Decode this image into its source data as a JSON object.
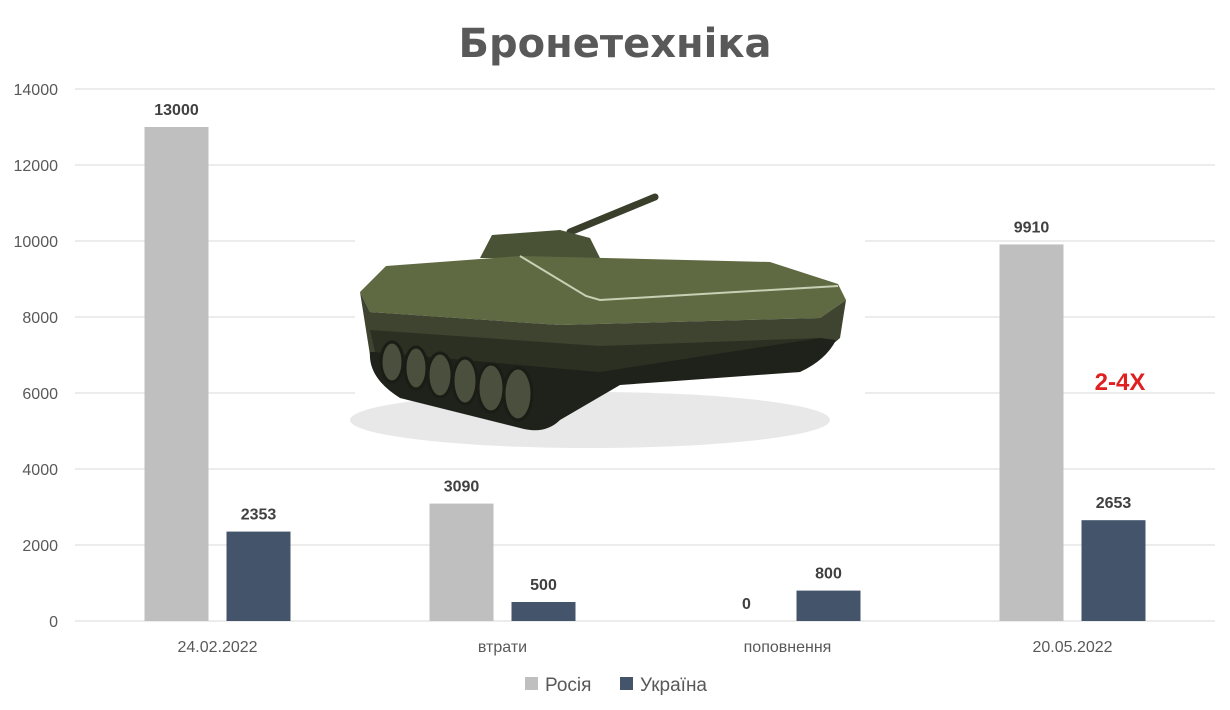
{
  "chart_data": {
    "type": "bar",
    "title": "Бронетехніка",
    "categories": [
      "24.02.2022",
      "втрати",
      "поповнення",
      "20.05.2022"
    ],
    "series": [
      {
        "name": "Росія",
        "color": "#bfbfbf",
        "values": [
          13000,
          3090,
          0,
          9910
        ]
      },
      {
        "name": "Україна",
        "color": "#44546a",
        "values": [
          2353,
          500,
          800,
          2653
        ]
      }
    ],
    "ylim": [
      0,
      14000
    ],
    "yticks": [
      0,
      2000,
      4000,
      6000,
      8000,
      10000,
      12000,
      14000
    ],
    "grid": true,
    "legend": "bottom",
    "annotation": {
      "text": "2-4X",
      "color": "#e02020"
    },
    "image": {
      "icon": "bmp-armored-vehicle-icon"
    }
  }
}
